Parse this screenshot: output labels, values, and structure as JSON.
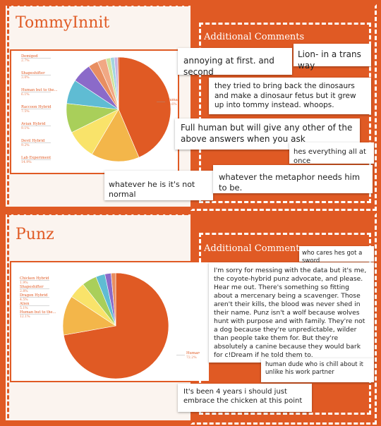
{
  "colors": {
    "accent": "#e05a24",
    "slices": [
      "#e05a24",
      "#f3b64a",
      "#f9e36a",
      "#a9cf5a",
      "#5fbcd3",
      "#8b6ac9",
      "#e88e61",
      "#f1a884",
      "#cfe39a",
      "#a3d5e0",
      "#c6b4e3",
      "#c0392b"
    ]
  },
  "sections": [
    {
      "title": "TommyInnit",
      "comments_title": "Additional Comments",
      "comments": [
        "annoying at first. and second",
        "Lion- in a trans way",
        "they tried to bring back the dinosaurs and make a dinosaur fetus but it grew up into tommy instead. whoops.",
        "Full human but will give any other of the above answers when you ask",
        "hes everything all at once",
        "whatever he is it's not normal",
        "whatever the metaphor needs him to be."
      ]
    },
    {
      "title": "Punz",
      "comments_title": "Additional Comments",
      "comments": [
        "who cares hes got a sword",
        "I'm sorry for messing with the data but it's me, the coyote-hybrid punz advocate, and please. Hear me out. There's something so fitting about a mercenary being a scavenger. Those aren't their kills, the blood was never shed in their name. Punz isn't a wolf because wolves hunt with purpose and with family. They're not a dog because they're unpredictable, wilder than people take them for. But they're absolutely a canine because they would bark for c!Dream if he told them to.",
        "human dude who is chill about it unlike his work partner",
        "It's been 4 years i should just embrace the chicken at this point"
      ]
    }
  ],
  "chart_data": [
    {
      "type": "pie",
      "title": "",
      "slices": [
        {
          "label": "Human",
          "value": 43.6,
          "pct": "43.6%"
        },
        {
          "label": "Lab Experiment",
          "value": 14.9,
          "pct": "14.9%"
        },
        {
          "label": "Devil Hybrid",
          "value": 9.2,
          "pct": "9.2%"
        },
        {
          "label": "Avian Hybrid",
          "value": 9.1,
          "pct": "9.1%"
        },
        {
          "label": "Raccoon Hybrid",
          "value": 7.5,
          "pct": "7.5%"
        },
        {
          "label": "Human but to the...",
          "value": 6.1,
          "pct": "6.1%"
        },
        {
          "label": "Shapeshifter",
          "value": 3.0,
          "pct": "3.0%"
        },
        {
          "label": "Demigod",
          "value": 2.7,
          "pct": "2.7%"
        },
        {
          "label": "",
          "value": 1.4,
          "pct": ""
        },
        {
          "label": "",
          "value": 1.2,
          "pct": ""
        },
        {
          "label": "",
          "value": 1.0,
          "pct": ""
        },
        {
          "label": "",
          "value": 0.3,
          "pct": ""
        }
      ]
    },
    {
      "type": "pie",
      "title": "",
      "slices": [
        {
          "label": "Human",
          "value": 72.2,
          "pct": "72.2%"
        },
        {
          "label": "Human but to the...",
          "value": 12.1,
          "pct": "12.1%"
        },
        {
          "label": "Alien",
          "value": 5.1,
          "pct": "5.1%"
        },
        {
          "label": "Dragon Hybrid",
          "value": 4.5,
          "pct": "4.5%"
        },
        {
          "label": "Shapeshifter",
          "value": 2.8,
          "pct": "2.8%"
        },
        {
          "label": "Chicken Hybrid",
          "value": 1.9,
          "pct": "1.9%"
        },
        {
          "label": "",
          "value": 1.4,
          "pct": ""
        }
      ]
    }
  ]
}
